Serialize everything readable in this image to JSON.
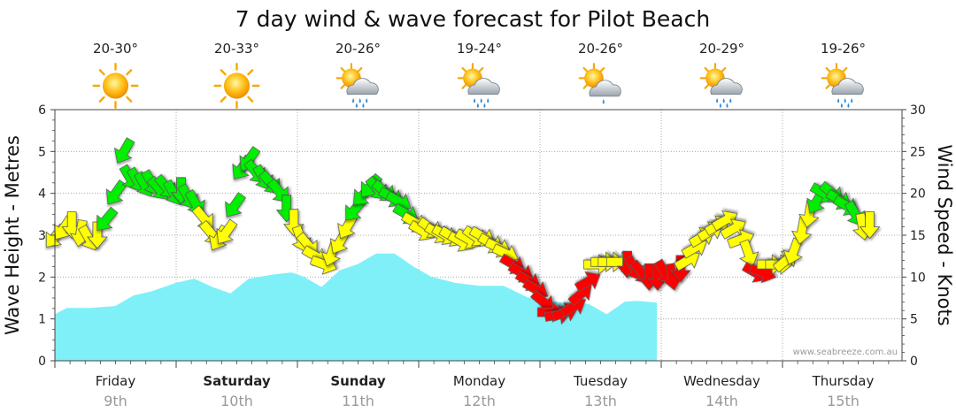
{
  "chart_data": {
    "type": "area",
    "title": "7 day wind & wave forecast for Pilot Beach",
    "ylabel_left": "Wave Height - Metres",
    "ylabel_right": "Wind Speed - Knots",
    "y_left_range": [
      0,
      6
    ],
    "y_right_range": [
      0,
      30
    ],
    "y_left_ticks": [
      "0",
      "1",
      "2",
      "3",
      "4",
      "5",
      "6"
    ],
    "y_right_ticks": [
      "0",
      "5",
      "10",
      "15",
      "20",
      "25",
      "30"
    ],
    "grid": true,
    "watermark": "www.seabreeze.com.au",
    "days": [
      {
        "name": "Friday",
        "date": "9th",
        "bold": false,
        "temp": "20-30°",
        "weather": "sunny"
      },
      {
        "name": "Saturday",
        "date": "10th",
        "bold": true,
        "temp": "20-33°",
        "weather": "sunny"
      },
      {
        "name": "Sunday",
        "date": "11th",
        "bold": true,
        "temp": "20-26°",
        "weather": "sun-rain"
      },
      {
        "name": "Monday",
        "date": "12th",
        "bold": false,
        "temp": "19-24°",
        "weather": "sun-rain"
      },
      {
        "name": "Tuesday",
        "date": "13th",
        "bold": false,
        "temp": "20-26°",
        "weather": "sun-cloud"
      },
      {
        "name": "Wednesday",
        "date": "14th",
        "bold": false,
        "temp": "20-29°",
        "weather": "sun-rain"
      },
      {
        "name": "Thursday",
        "date": "15th",
        "bold": false,
        "temp": "19-26°",
        "weather": "sun-rain"
      }
    ],
    "wave_series": {
      "name": "Wave Height",
      "unit": "Metres",
      "color": "#7ff0f8",
      "x_days": [
        0,
        0.1,
        0.3,
        0.5,
        0.65,
        0.8,
        1.0,
        1.15,
        1.3,
        1.45,
        1.6,
        1.8,
        1.95,
        2.05,
        2.2,
        2.35,
        2.5,
        2.65,
        2.8,
        2.95,
        3.1,
        3.3,
        3.5,
        3.7,
        3.9,
        4.05,
        4.2,
        4.4,
        4.55,
        4.7,
        4.8,
        4.96
      ],
      "values": [
        1.1,
        1.25,
        1.25,
        1.3,
        1.55,
        1.65,
        1.85,
        1.95,
        1.75,
        1.6,
        1.95,
        2.05,
        2.1,
        2.0,
        1.75,
        2.15,
        2.3,
        2.55,
        2.55,
        2.25,
        2.0,
        1.85,
        1.78,
        1.78,
        1.5,
        1.42,
        1.38,
        1.35,
        1.1,
        1.4,
        1.42,
        1.38
      ]
    },
    "wind_series": {
      "name": "Wind Speed",
      "unit": "Knots",
      "colors": {
        "light": "#ffff00",
        "moderate": "#00ee00",
        "strong": "#ff0000"
      },
      "points": [
        {
          "x": 0.0,
          "y": 14.8,
          "dir": 40,
          "band": "light"
        },
        {
          "x": 0.07,
          "y": 15.8,
          "dir": 35,
          "band": "light"
        },
        {
          "x": 0.14,
          "y": 16.2,
          "dir": 0,
          "band": "light"
        },
        {
          "x": 0.21,
          "y": 15.2,
          "dir": 10,
          "band": "light"
        },
        {
          "x": 0.28,
          "y": 14.6,
          "dir": 330,
          "band": "light"
        },
        {
          "x": 0.35,
          "y": 15.0,
          "dir": 0,
          "band": "light"
        },
        {
          "x": 0.42,
          "y": 16.8,
          "dir": 40,
          "band": "moderate"
        },
        {
          "x": 0.5,
          "y": 20.0,
          "dir": 35,
          "band": "moderate"
        },
        {
          "x": 0.57,
          "y": 25.0,
          "dir": 30,
          "band": "moderate"
        },
        {
          "x": 0.62,
          "y": 21.8,
          "dir": 330,
          "band": "moderate"
        },
        {
          "x": 0.68,
          "y": 21.5,
          "dir": 330,
          "band": "moderate"
        },
        {
          "x": 0.74,
          "y": 21.0,
          "dir": 330,
          "band": "moderate"
        },
        {
          "x": 0.8,
          "y": 21.2,
          "dir": 330,
          "band": "moderate"
        },
        {
          "x": 0.86,
          "y": 20.5,
          "dir": 320,
          "band": "moderate"
        },
        {
          "x": 0.92,
          "y": 20.7,
          "dir": 320,
          "band": "moderate"
        },
        {
          "x": 0.98,
          "y": 20.0,
          "dir": 330,
          "band": "moderate"
        },
        {
          "x": 1.04,
          "y": 20.3,
          "dir": 0,
          "band": "moderate"
        },
        {
          "x": 1.1,
          "y": 19.5,
          "dir": 330,
          "band": "moderate"
        },
        {
          "x": 1.16,
          "y": 18.8,
          "dir": 330,
          "band": "moderate"
        },
        {
          "x": 1.23,
          "y": 17.0,
          "dir": 320,
          "band": "light"
        },
        {
          "x": 1.29,
          "y": 15.2,
          "dir": 320,
          "band": "light"
        },
        {
          "x": 1.35,
          "y": 14.6,
          "dir": 30,
          "band": "light"
        },
        {
          "x": 1.41,
          "y": 15.3,
          "dir": 35,
          "band": "light"
        },
        {
          "x": 1.48,
          "y": 18.5,
          "dir": 35,
          "band": "moderate"
        },
        {
          "x": 1.54,
          "y": 23.0,
          "dir": 35,
          "band": "moderate"
        },
        {
          "x": 1.6,
          "y": 24.0,
          "dir": 35,
          "band": "moderate"
        },
        {
          "x": 1.66,
          "y": 22.5,
          "dir": 320,
          "band": "moderate"
        },
        {
          "x": 1.72,
          "y": 21.8,
          "dir": 330,
          "band": "moderate"
        },
        {
          "x": 1.78,
          "y": 21.2,
          "dir": 320,
          "band": "moderate"
        },
        {
          "x": 1.85,
          "y": 20.2,
          "dir": 320,
          "band": "moderate"
        },
        {
          "x": 1.91,
          "y": 18.2,
          "dir": 0,
          "band": "moderate"
        },
        {
          "x": 1.97,
          "y": 16.5,
          "dir": 0,
          "band": "light"
        },
        {
          "x": 2.03,
          "y": 14.5,
          "dir": 340,
          "band": "light"
        },
        {
          "x": 2.09,
          "y": 13.8,
          "dir": 320,
          "band": "light"
        },
        {
          "x": 2.15,
          "y": 12.5,
          "dir": 300,
          "band": "light"
        },
        {
          "x": 2.22,
          "y": 11.5,
          "dir": 290,
          "band": "light"
        },
        {
          "x": 2.28,
          "y": 12.8,
          "dir": 20,
          "band": "light"
        },
        {
          "x": 2.35,
          "y": 14.2,
          "dir": 30,
          "band": "light"
        },
        {
          "x": 2.41,
          "y": 16.0,
          "dir": 30,
          "band": "light"
        },
        {
          "x": 2.47,
          "y": 18.0,
          "dir": 40,
          "band": "moderate"
        },
        {
          "x": 2.54,
          "y": 19.8,
          "dir": 45,
          "band": "moderate"
        },
        {
          "x": 2.6,
          "y": 20.8,
          "dir": 40,
          "band": "moderate"
        },
        {
          "x": 2.66,
          "y": 20.5,
          "dir": 320,
          "band": "moderate"
        },
        {
          "x": 2.72,
          "y": 20.2,
          "dir": 310,
          "band": "moderate"
        },
        {
          "x": 2.78,
          "y": 19.5,
          "dir": 300,
          "band": "moderate"
        },
        {
          "x": 2.84,
          "y": 19.0,
          "dir": 300,
          "band": "moderate"
        },
        {
          "x": 2.9,
          "y": 17.5,
          "dir": 300,
          "band": "moderate"
        },
        {
          "x": 2.97,
          "y": 16.5,
          "dir": 300,
          "band": "light"
        },
        {
          "x": 3.03,
          "y": 15.5,
          "dir": 300,
          "band": "light"
        },
        {
          "x": 3.1,
          "y": 15.8,
          "dir": 305,
          "band": "light"
        },
        {
          "x": 3.16,
          "y": 15.2,
          "dir": 300,
          "band": "light"
        },
        {
          "x": 3.22,
          "y": 15.0,
          "dir": 300,
          "band": "light"
        },
        {
          "x": 3.28,
          "y": 14.8,
          "dir": 300,
          "band": "light"
        },
        {
          "x": 3.35,
          "y": 14.2,
          "dir": 300,
          "band": "light"
        },
        {
          "x": 3.41,
          "y": 14.5,
          "dir": 300,
          "band": "light"
        },
        {
          "x": 3.47,
          "y": 14.8,
          "dir": 305,
          "band": "light"
        },
        {
          "x": 3.53,
          "y": 14.8,
          "dir": 300,
          "band": "light"
        },
        {
          "x": 3.6,
          "y": 14.0,
          "dir": 300,
          "band": "light"
        },
        {
          "x": 3.66,
          "y": 13.5,
          "dir": 295,
          "band": "light"
        },
        {
          "x": 3.72,
          "y": 12.8,
          "dir": 295,
          "band": "light"
        },
        {
          "x": 3.78,
          "y": 11.5,
          "dir": 300,
          "band": "strong"
        },
        {
          "x": 3.85,
          "y": 10.5,
          "dir": 300,
          "band": "strong"
        },
        {
          "x": 3.91,
          "y": 9.5,
          "dir": 300,
          "band": "strong"
        },
        {
          "x": 3.97,
          "y": 8.5,
          "dir": 300,
          "band": "strong"
        },
        {
          "x": 4.03,
          "y": 7.0,
          "dir": 310,
          "band": "strong"
        },
        {
          "x": 4.09,
          "y": 5.8,
          "dir": 270,
          "band": "strong"
        },
        {
          "x": 4.15,
          "y": 5.5,
          "dir": 260,
          "band": "strong"
        },
        {
          "x": 4.21,
          "y": 5.8,
          "dir": 250,
          "band": "strong"
        },
        {
          "x": 4.28,
          "y": 6.5,
          "dir": 240,
          "band": "strong"
        },
        {
          "x": 4.34,
          "y": 8.0,
          "dir": 230,
          "band": "strong"
        },
        {
          "x": 4.4,
          "y": 9.5,
          "dir": 240,
          "band": "strong"
        },
        {
          "x": 4.47,
          "y": 11.5,
          "dir": 270,
          "band": "light"
        },
        {
          "x": 4.53,
          "y": 11.8,
          "dir": 270,
          "band": "light"
        },
        {
          "x": 4.59,
          "y": 11.8,
          "dir": 270,
          "band": "light"
        },
        {
          "x": 4.66,
          "y": 11.8,
          "dir": 270,
          "band": "light"
        },
        {
          "x": 4.72,
          "y": 11.5,
          "dir": 0,
          "band": "strong"
        },
        {
          "x": 4.78,
          "y": 11.0,
          "dir": 330,
          "band": "strong"
        },
        {
          "x": 4.84,
          "y": 10.5,
          "dir": 320,
          "band": "strong"
        },
        {
          "x": 4.9,
          "y": 10.0,
          "dir": 0,
          "band": "strong"
        },
        {
          "x": 4.97,
          "y": 10.0,
          "dir": 0,
          "band": "strong"
        },
        {
          "x": 5.03,
          "y": 10.5,
          "dir": 330,
          "band": "strong"
        },
        {
          "x": 5.09,
          "y": 10.0,
          "dir": 350,
          "band": "strong"
        },
        {
          "x": 5.16,
          "y": 11.0,
          "dir": 0,
          "band": "strong"
        },
        {
          "x": 5.22,
          "y": 12.0,
          "dir": 240,
          "band": "light"
        },
        {
          "x": 5.28,
          "y": 13.5,
          "dir": 240,
          "band": "light"
        },
        {
          "x": 5.34,
          "y": 14.8,
          "dir": 240,
          "band": "light"
        },
        {
          "x": 5.41,
          "y": 15.5,
          "dir": 240,
          "band": "light"
        },
        {
          "x": 5.47,
          "y": 16.2,
          "dir": 240,
          "band": "light"
        },
        {
          "x": 5.53,
          "y": 16.8,
          "dir": 240,
          "band": "light"
        },
        {
          "x": 5.6,
          "y": 15.8,
          "dir": 240,
          "band": "light"
        },
        {
          "x": 5.66,
          "y": 14.5,
          "dir": 250,
          "band": "light"
        },
        {
          "x": 5.72,
          "y": 12.8,
          "dir": 340,
          "band": "light"
        },
        {
          "x": 5.78,
          "y": 10.5,
          "dir": 300,
          "band": "strong"
        },
        {
          "x": 5.84,
          "y": 10.5,
          "dir": 290,
          "band": "strong"
        },
        {
          "x": 5.9,
          "y": 11.5,
          "dir": 270,
          "band": "light"
        },
        {
          "x": 5.97,
          "y": 11.5,
          "dir": 270,
          "band": "light"
        },
        {
          "x": 6.03,
          "y": 12.0,
          "dir": 230,
          "band": "light"
        },
        {
          "x": 6.09,
          "y": 13.0,
          "dir": 20,
          "band": "light"
        },
        {
          "x": 6.16,
          "y": 15.5,
          "dir": 10,
          "band": "light"
        },
        {
          "x": 6.22,
          "y": 17.5,
          "dir": 10,
          "band": "light"
        },
        {
          "x": 6.28,
          "y": 19.0,
          "dir": 30,
          "band": "moderate"
        },
        {
          "x": 6.34,
          "y": 20.0,
          "dir": 300,
          "band": "moderate"
        },
        {
          "x": 6.41,
          "y": 20.0,
          "dir": 310,
          "band": "moderate"
        },
        {
          "x": 6.47,
          "y": 19.2,
          "dir": 300,
          "band": "moderate"
        },
        {
          "x": 6.53,
          "y": 18.5,
          "dir": 300,
          "band": "moderate"
        },
        {
          "x": 6.6,
          "y": 17.5,
          "dir": 330,
          "band": "moderate"
        },
        {
          "x": 6.66,
          "y": 16.0,
          "dir": 350,
          "band": "light"
        },
        {
          "x": 6.72,
          "y": 16.2,
          "dir": 0,
          "band": "light"
        }
      ]
    }
  }
}
